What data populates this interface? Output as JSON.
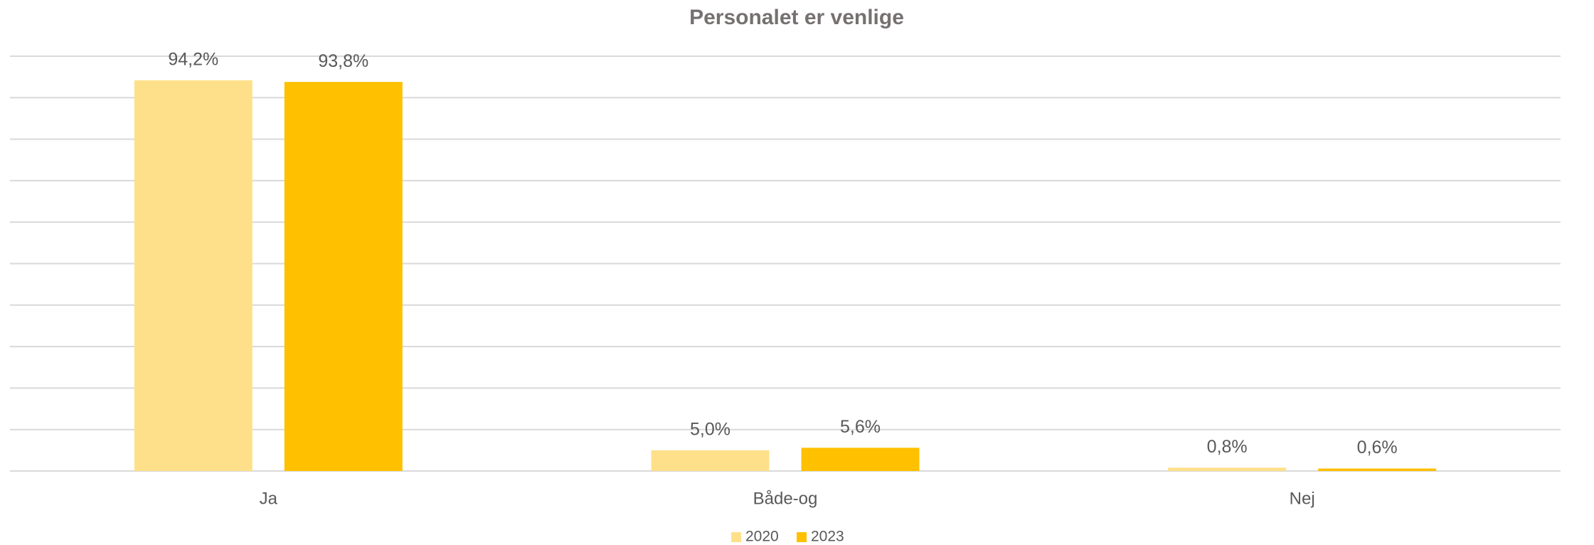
{
  "chart_data": {
    "type": "bar",
    "title": "Personalet er venlige",
    "categories": [
      "Ja",
      "Både-og",
      "Nej"
    ],
    "series": [
      {
        "name": "2020",
        "color": "#FFE08A",
        "values": [
          94.2,
          5.0,
          0.8
        ],
        "value_labels": [
          "94,2%",
          "5,0%",
          "0,8%"
        ]
      },
      {
        "name": "2023",
        "color": "#FFC000",
        "values": [
          93.8,
          5.6,
          0.6
        ],
        "value_labels": [
          "93,8%",
          "5,6%",
          "0,6%"
        ]
      }
    ],
    "ylim": [
      0,
      100
    ],
    "yticks": [
      0,
      10,
      20,
      30,
      40,
      50,
      60,
      70,
      80,
      90,
      100
    ],
    "grid": true,
    "legend": "bottom"
  }
}
